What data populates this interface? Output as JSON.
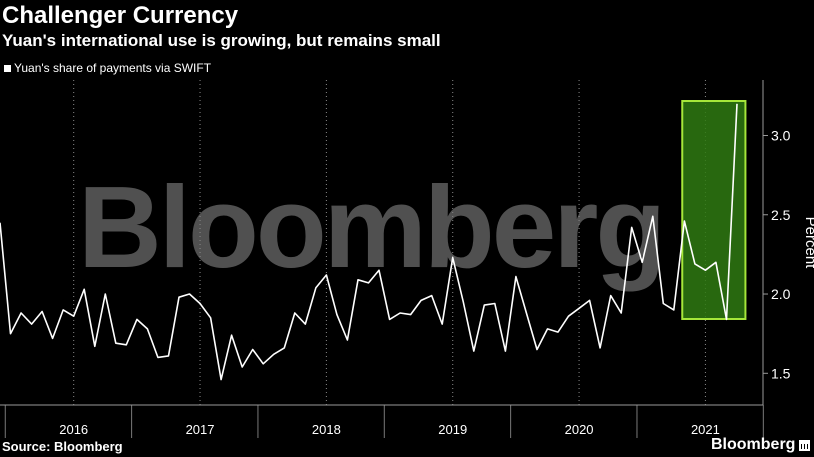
{
  "header": {
    "title": "Challenger Currency",
    "subtitle": "Yuan's international use is growing, but remains small"
  },
  "footer": {
    "source": "Source: Bloomberg",
    "brand": "Bloomberg"
  },
  "watermark": "Bloomberg",
  "colors": {
    "background": "#000000",
    "line": "#ffffff",
    "highlight_fill": "#2f7a12",
    "highlight_stroke": "#a6e63a"
  },
  "chart_data": {
    "type": "line",
    "title": "",
    "xlabel": "",
    "ylabel": "Percent",
    "ylim": [
      1.3,
      3.35
    ],
    "yticks": [
      1.5,
      2.0,
      2.5,
      3.0
    ],
    "ytick_labels": [
      "1.5",
      "2.0",
      "2.5",
      "3.0"
    ],
    "grid": "vertical dotted",
    "legend_position": "top-left",
    "year_labels": [
      "2016",
      "2017",
      "2018",
      "2019",
      "2020",
      "2021"
    ],
    "highlight_range": [
      "2021-06",
      "2021-10"
    ],
    "series": [
      {
        "name": "Yuan's share of payments via SWIFT",
        "x": [
          "2015-12",
          "2016-01",
          "2016-02",
          "2016-03",
          "2016-04",
          "2016-05",
          "2016-06",
          "2016-07",
          "2016-08",
          "2016-09",
          "2016-10",
          "2016-11",
          "2016-12",
          "2017-01",
          "2017-02",
          "2017-03",
          "2017-04",
          "2017-05",
          "2017-06",
          "2017-07",
          "2017-08",
          "2017-09",
          "2017-10",
          "2017-11",
          "2017-12",
          "2018-01",
          "2018-02",
          "2018-03",
          "2018-04",
          "2018-05",
          "2018-06",
          "2018-07",
          "2018-08",
          "2018-09",
          "2018-10",
          "2018-11",
          "2018-12",
          "2019-01",
          "2019-02",
          "2019-03",
          "2019-04",
          "2019-05",
          "2019-06",
          "2019-07",
          "2019-08",
          "2019-09",
          "2019-10",
          "2019-11",
          "2019-12",
          "2020-01",
          "2020-02",
          "2020-03",
          "2020-04",
          "2020-05",
          "2020-06",
          "2020-07",
          "2020-08",
          "2020-09",
          "2020-10",
          "2020-11",
          "2020-12",
          "2021-01",
          "2021-02",
          "2021-03",
          "2021-04",
          "2021-05",
          "2021-06",
          "2021-07",
          "2021-08",
          "2021-09",
          "2021-10"
        ],
        "values": [
          2.45,
          1.75,
          1.88,
          1.81,
          1.89,
          1.72,
          1.9,
          1.86,
          2.03,
          1.67,
          2.0,
          1.69,
          1.68,
          1.84,
          1.78,
          1.6,
          1.61,
          1.98,
          2.0,
          1.94,
          1.85,
          1.46,
          1.74,
          1.54,
          1.65,
          1.56,
          1.62,
          1.66,
          1.88,
          1.81,
          2.04,
          2.12,
          1.87,
          1.71,
          2.09,
          2.07,
          2.15,
          1.84,
          1.88,
          1.87,
          1.96,
          1.99,
          1.81,
          2.23,
          1.95,
          1.64,
          1.93,
          1.94,
          1.64,
          2.11,
          1.88,
          1.65,
          1.78,
          1.76,
          1.86,
          1.91,
          1.96,
          1.66,
          1.99,
          1.88,
          2.42,
          2.2,
          2.49,
          1.94,
          1.9,
          2.46,
          2.19,
          2.15,
          2.2,
          1.84,
          3.2
        ]
      }
    ]
  }
}
